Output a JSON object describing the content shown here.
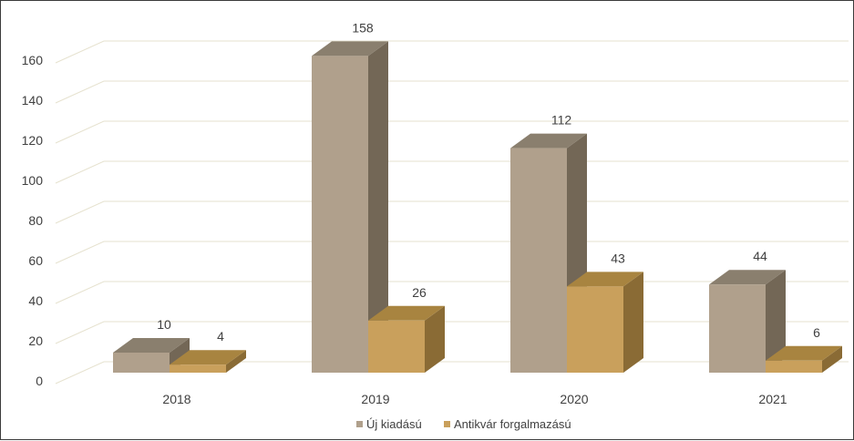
{
  "chart_data": {
    "type": "bar",
    "title": "",
    "xlabel": "",
    "ylabel": "",
    "categories": [
      "2018",
      "2019",
      "2020",
      "2021"
    ],
    "series": [
      {
        "name": "Új kiadású",
        "values": [
          10,
          158,
          112,
          44
        ],
        "labels": [
          "10",
          "158",
          "112",
          "44"
        ]
      },
      {
        "name": "Antikvár forgalmazású",
        "values": [
          4,
          26,
          43,
          6
        ],
        "labels": [
          "4",
          "26",
          "43",
          "6"
        ]
      }
    ],
    "ylim": [
      0,
      160
    ],
    "yticks": [
      "0",
      "20",
      "40",
      "60",
      "80",
      "100",
      "120",
      "140",
      "160"
    ],
    "grid": true,
    "legend_position": "bottom",
    "bar_style": "3d"
  },
  "colors": {
    "series_front": [
      "#b0a08c",
      "#c9a05c"
    ],
    "series_side": [
      "#736756",
      "#8a6b35"
    ],
    "series_top": [
      "#8a7f6e",
      "#a88440"
    ],
    "grid": "#e6e2cf"
  }
}
